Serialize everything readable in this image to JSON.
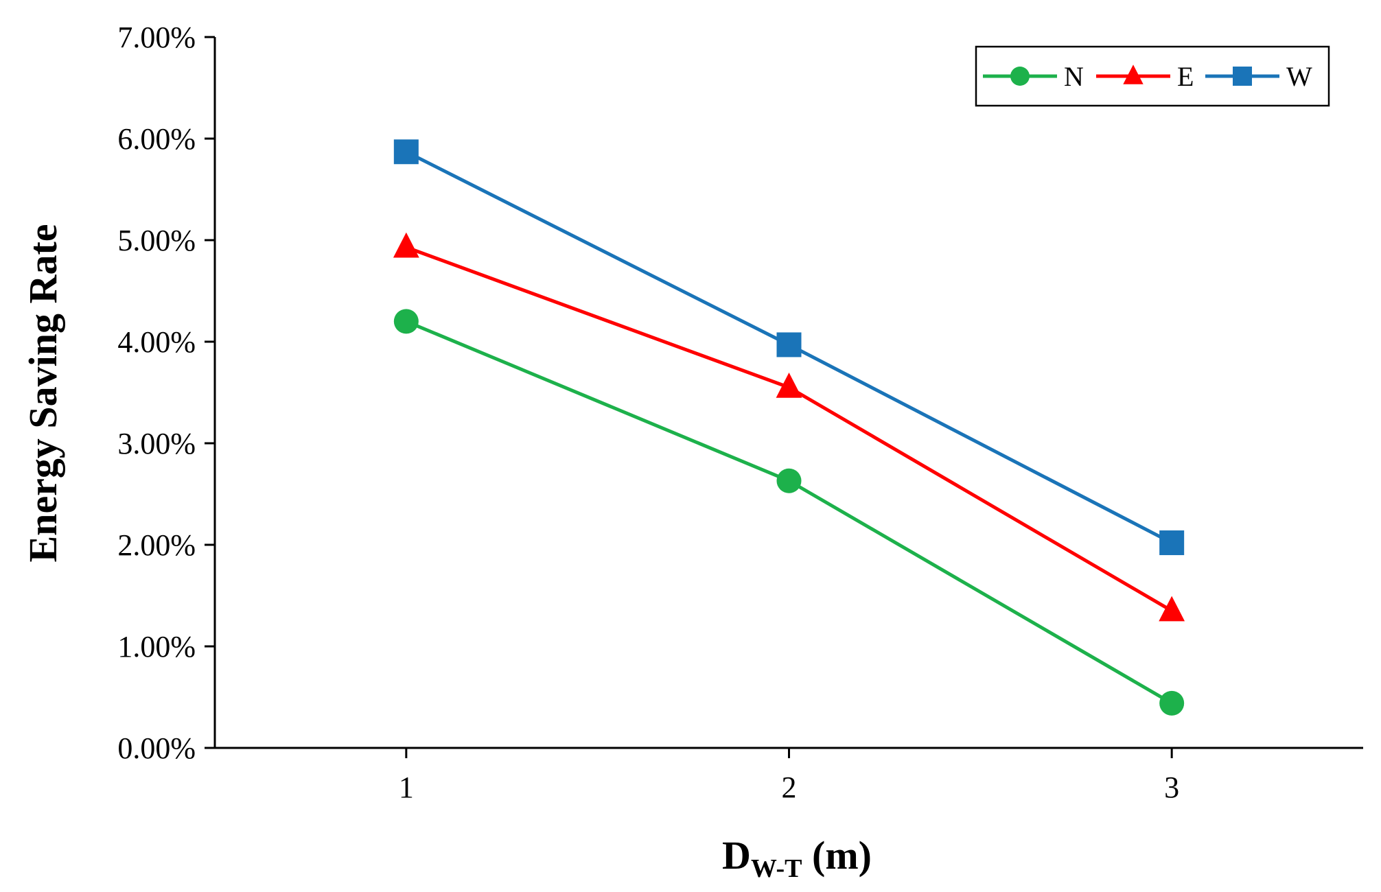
{
  "chart_data": {
    "type": "line",
    "title": "",
    "xlabel": {
      "main": "D",
      "subscript": "W-T",
      "suffix": " (m)"
    },
    "ylabel": "Energy Saving Rate",
    "categories": [
      "1",
      "2",
      "3"
    ],
    "x": [
      1,
      2,
      3
    ],
    "xlim": [
      0.5,
      3.5
    ],
    "ylim": [
      0,
      0.07
    ],
    "yticks": [
      0,
      0.01,
      0.02,
      0.03,
      0.04,
      0.05,
      0.06,
      0.07
    ],
    "ytick_labels": [
      "0.00%",
      "1.00%",
      "2.00%",
      "3.00%",
      "4.00%",
      "5.00%",
      "6.00%",
      "7.00%"
    ],
    "grid": false,
    "legend_position": "top-right",
    "series": [
      {
        "name": "N",
        "color": "#1db14b",
        "marker": "circle",
        "values": [
          0.042,
          0.0263,
          0.0044
        ]
      },
      {
        "name": "E",
        "color": "#ff0000",
        "marker": "triangle",
        "values": [
          0.0493,
          0.0355,
          0.0135
        ]
      },
      {
        "name": "W",
        "color": "#1a74b8",
        "marker": "square",
        "values": [
          0.0587,
          0.0397,
          0.0202
        ]
      }
    ]
  }
}
